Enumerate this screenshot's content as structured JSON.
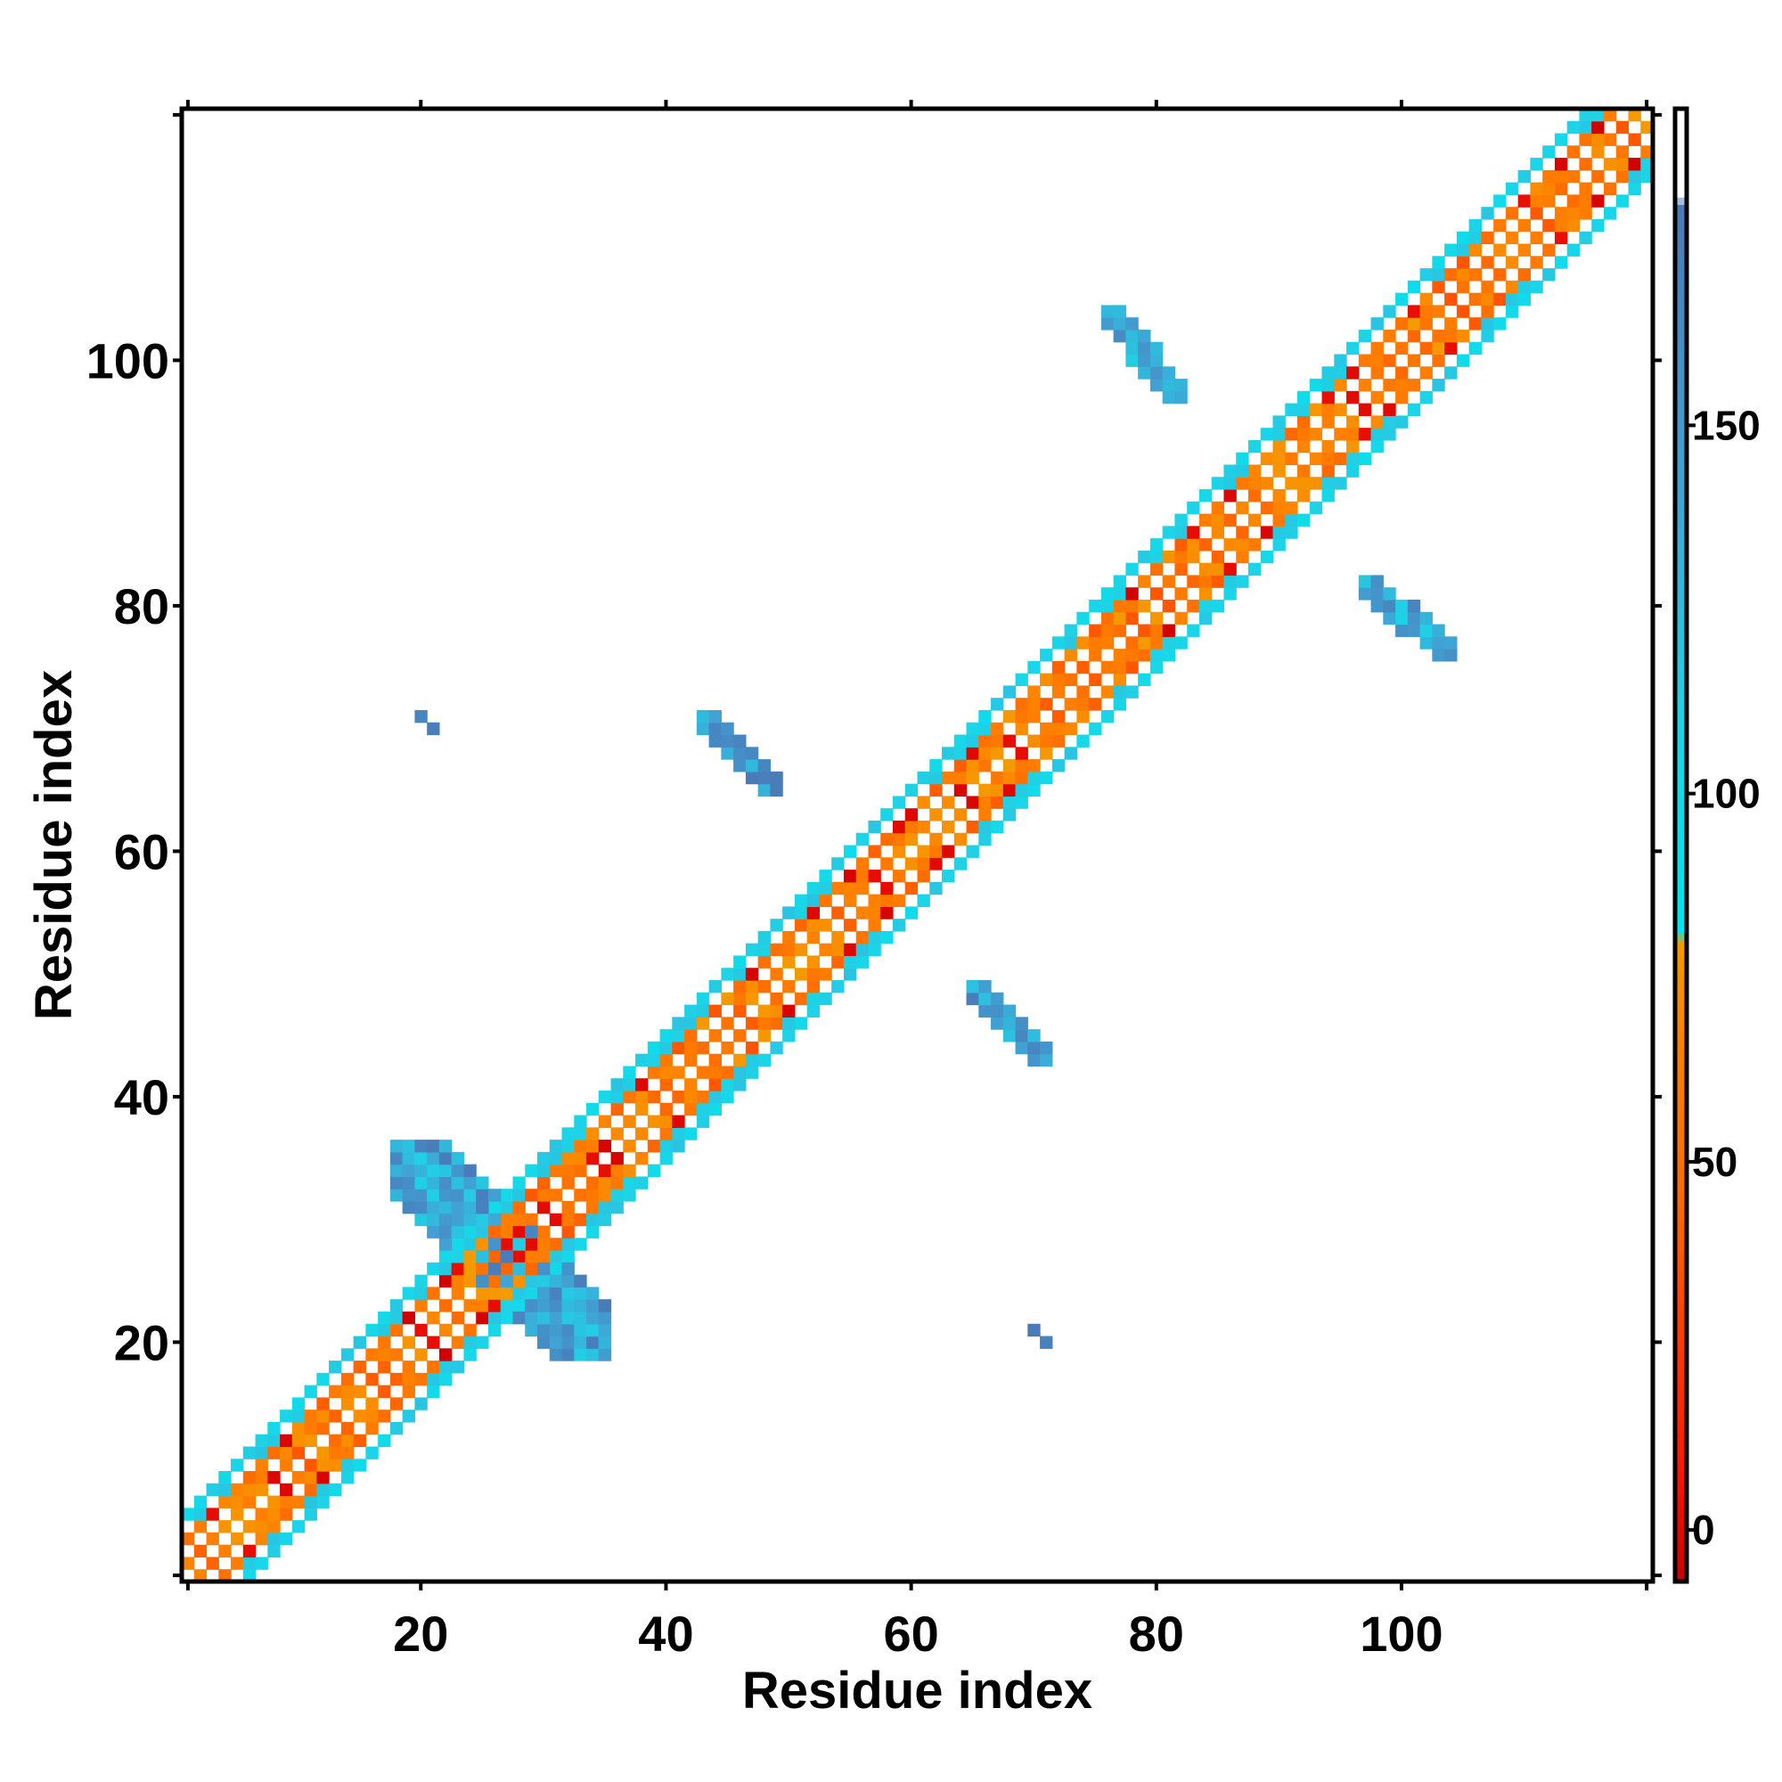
{
  "chart_data": {
    "type": "heatmap",
    "title": "",
    "xlabel": "Residue index",
    "ylabel": "Residue index",
    "xlim": [
      0.5,
      120.5
    ],
    "ylim": [
      0.5,
      120.5
    ],
    "x_ticks": [
      20,
      40,
      60,
      80,
      100
    ],
    "y_ticks": [
      20,
      40,
      60,
      80,
      100
    ],
    "grid": false,
    "legend": "colorbar, right",
    "colorbar": {
      "range": [
        -7,
        193
      ],
      "ticks": [
        0,
        50,
        100,
        150
      ],
      "stops": [
        {
          "value": -7,
          "color": "#cc0000"
        },
        {
          "value": 10,
          "color": "#ff1a00"
        },
        {
          "value": 30,
          "color": "#ff4400"
        },
        {
          "value": 45,
          "color": "#ff6a00"
        },
        {
          "value": 66,
          "color": "#ff7f00"
        },
        {
          "value": 80,
          "color": "#f59a00"
        },
        {
          "value": 81,
          "color": "#00e5ee"
        },
        {
          "value": 110,
          "color": "#1fd2e6"
        },
        {
          "value": 140,
          "color": "#3fa6d6"
        },
        {
          "value": 180,
          "color": "#4a7ab8"
        },
        {
          "value": 181,
          "color": "#ffffff"
        },
        {
          "value": 193,
          "color": "#ffffff"
        }
      ]
    },
    "regions": [
      {
        "name": "diagonal band",
        "x_start": 1,
        "x_end": 120,
        "y_start": 1,
        "y_end": 120,
        "value_range": [
          -7,
          120
        ]
      },
      {
        "name": "off-diagonal block",
        "x_start": 18,
        "x_end": 35,
        "y_start": 19,
        "y_end": 36,
        "value_range": [
          110,
          180
        ]
      },
      {
        "name": "off-diagonal block",
        "x_start": 20,
        "x_end": 21,
        "y_start": 70,
        "y_end": 71,
        "value_range": [
          160,
          180
        ]
      },
      {
        "name": "off-diagonal block",
        "x_start": 43,
        "x_end": 49,
        "y_start": 65,
        "y_end": 71,
        "value_range": [
          120,
          180
        ]
      },
      {
        "name": "off-diagonal block",
        "x_start": 65,
        "x_end": 71,
        "y_start": 43,
        "y_end": 49,
        "value_range": [
          120,
          180
        ]
      },
      {
        "name": "off-diagonal block",
        "x_start": 70,
        "x_end": 71,
        "y_start": 20,
        "y_end": 21,
        "value_range": [
          160,
          180
        ]
      },
      {
        "name": "off-diagonal block",
        "x_start": 76,
        "x_end": 82,
        "y_start": 97,
        "y_end": 104,
        "value_range": [
          110,
          170
        ]
      },
      {
        "name": "off-diagonal block",
        "x_start": 97,
        "x_end": 104,
        "y_start": 76,
        "y_end": 82,
        "value_range": [
          110,
          170
        ]
      }
    ]
  }
}
